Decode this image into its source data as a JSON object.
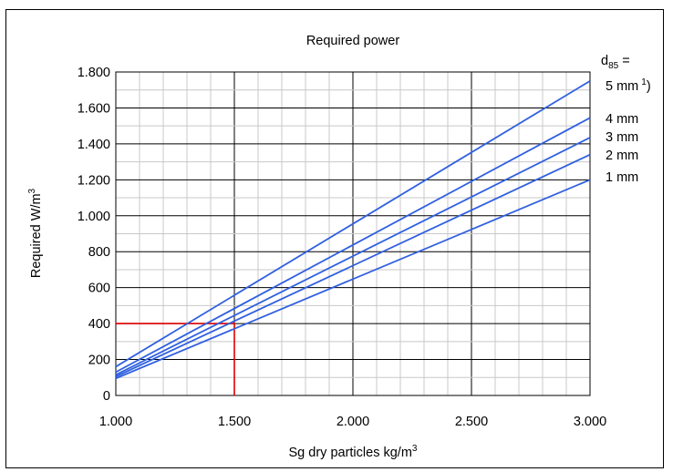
{
  "chart_data": {
    "type": "line",
    "title": "Required power",
    "xlabel": "Sg dry particles kg/m",
    "xlabel_sup": "3",
    "ylabel": "Required W/m",
    "ylabel_sup": "3",
    "xlim": [
      1000,
      3000
    ],
    "ylim": [
      0,
      1800
    ],
    "x_ticks": [
      1000,
      1500,
      2000,
      2500,
      3000
    ],
    "x_tick_labels": [
      "1.000",
      "1.500",
      "2.000",
      "2.500",
      "3.000"
    ],
    "y_ticks": [
      0,
      200,
      400,
      600,
      800,
      1000,
      1200,
      1400,
      1600,
      1800
    ],
    "y_tick_labels": [
      "0",
      "200",
      "400",
      "600",
      "800",
      "1.000",
      "1.200",
      "1.400",
      "1.600",
      "1.800"
    ],
    "grid": true,
    "legend_header": {
      "text": "d",
      "sub": "85",
      "suffix": " ="
    },
    "series": [
      {
        "name": "5 mm",
        "sup": "1",
        "suffix": ")",
        "x": [
          1000,
          3000
        ],
        "y": [
          160,
          1750
        ]
      },
      {
        "name": "4 mm",
        "x": [
          1000,
          3000
        ],
        "y": [
          130,
          1545
        ]
      },
      {
        "name": "3 mm",
        "x": [
          1000,
          3000
        ],
        "y": [
          115,
          1435
        ]
      },
      {
        "name": "2 mm",
        "x": [
          1000,
          3000
        ],
        "y": [
          105,
          1340
        ]
      },
      {
        "name": "1 mm",
        "x": [
          1000,
          3000
        ],
        "y": [
          95,
          1200
        ]
      }
    ],
    "guide_line": {
      "x": 1500,
      "y": 400
    }
  },
  "colors": {
    "series": "#3060e0",
    "guide": "#e00000",
    "grid_minor": "#c8c8c8",
    "grid_major": "#000000"
  }
}
